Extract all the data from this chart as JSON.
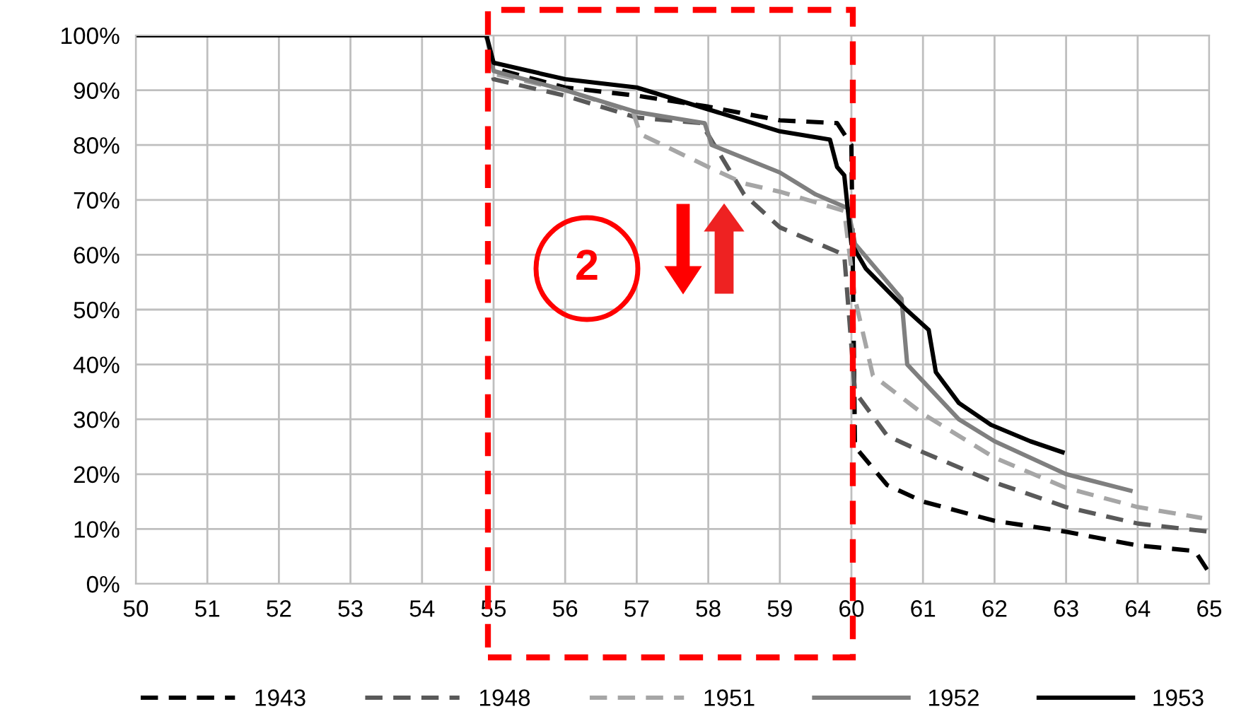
{
  "chart_data": {
    "type": "line",
    "xlim": [
      50,
      65
    ],
    "xticks": [
      50,
      51,
      52,
      53,
      54,
      55,
      56,
      57,
      58,
      59,
      60,
      61,
      62,
      63,
      64,
      65
    ],
    "ylim": [
      0,
      100
    ],
    "yticks": [
      {
        "value": 0,
        "label": "0%"
      },
      {
        "value": 10,
        "label": "10%"
      },
      {
        "value": 20,
        "label": "20%"
      },
      {
        "value": 30,
        "label": "30%"
      },
      {
        "value": 40,
        "label": "40%"
      },
      {
        "value": 50,
        "label": "50%"
      },
      {
        "value": 60,
        "label": "60%"
      },
      {
        "value": 70,
        "label": "70%"
      },
      {
        "value": 80,
        "label": "80%"
      },
      {
        "value": 90,
        "label": "90%"
      },
      {
        "value": 100,
        "label": "100%"
      }
    ],
    "grid": true,
    "legend": "bottom",
    "marker": "none",
    "series": [
      {
        "name": "1943",
        "color": "#000000",
        "line_style": "dashed",
        "x": [
          50,
          54.9,
          55,
          56,
          57,
          58,
          59,
          59.8,
          60,
          60.05,
          60.5,
          61,
          62,
          63,
          64,
          64.8,
          65
        ],
        "values": [
          100,
          100,
          94,
          90.5,
          89,
          87,
          84.5,
          84,
          80,
          25,
          18,
          15,
          11.5,
          9.5,
          7,
          6,
          2
        ]
      },
      {
        "name": "1948",
        "color": "#595959",
        "line_style": "dashed",
        "x": [
          50,
          54.9,
          55,
          56,
          57,
          57.9,
          58.5,
          59,
          59.9,
          60.05,
          60.5,
          61,
          62,
          63,
          64,
          65
        ],
        "values": [
          100,
          100,
          92,
          89,
          85,
          84,
          71,
          65,
          60,
          35,
          27,
          24,
          18.5,
          14,
          11,
          9.5
        ]
      },
      {
        "name": "1951",
        "color": "#a6a6a6",
        "line_style": "dashed",
        "x": [
          50,
          54.9,
          55,
          56,
          56.95,
          57.05,
          58,
          58.5,
          59,
          59.9,
          60.05,
          60.3,
          61,
          62,
          63,
          64,
          64.9
        ],
        "values": [
          100,
          100,
          93,
          90,
          86,
          82,
          76,
          73,
          71.5,
          68,
          52,
          38,
          31,
          23,
          17.5,
          14,
          12
        ]
      },
      {
        "name": "1952",
        "color": "#7f7f7f",
        "line_style": "solid",
        "x": [
          50,
          54.9,
          55,
          56,
          57,
          57.95,
          58.05,
          59,
          59.5,
          59.95,
          60.05,
          60.7,
          60.78,
          61.5,
          62,
          63,
          63.9
        ],
        "values": [
          100,
          100,
          93.5,
          90,
          86,
          84,
          80,
          75,
          71,
          68.5,
          62,
          52,
          40,
          30,
          26,
          20,
          17
        ]
      },
      {
        "name": "1953",
        "color": "#000000",
        "line_style": "solid",
        "x": [
          50,
          54.9,
          55,
          56,
          57,
          58,
          59,
          59.7,
          59.8,
          59.9,
          60,
          60.2,
          60.75,
          61.08,
          61.18,
          61.5,
          61.95,
          62.5,
          62.95
        ],
        "values": [
          100,
          100,
          95,
          92,
          90.5,
          86.5,
          82.5,
          81,
          76,
          74.5,
          62,
          57.5,
          50.2,
          46.3,
          38.6,
          33,
          29,
          26,
          24
        ]
      }
    ],
    "annotations": [
      "2"
    ]
  }
}
